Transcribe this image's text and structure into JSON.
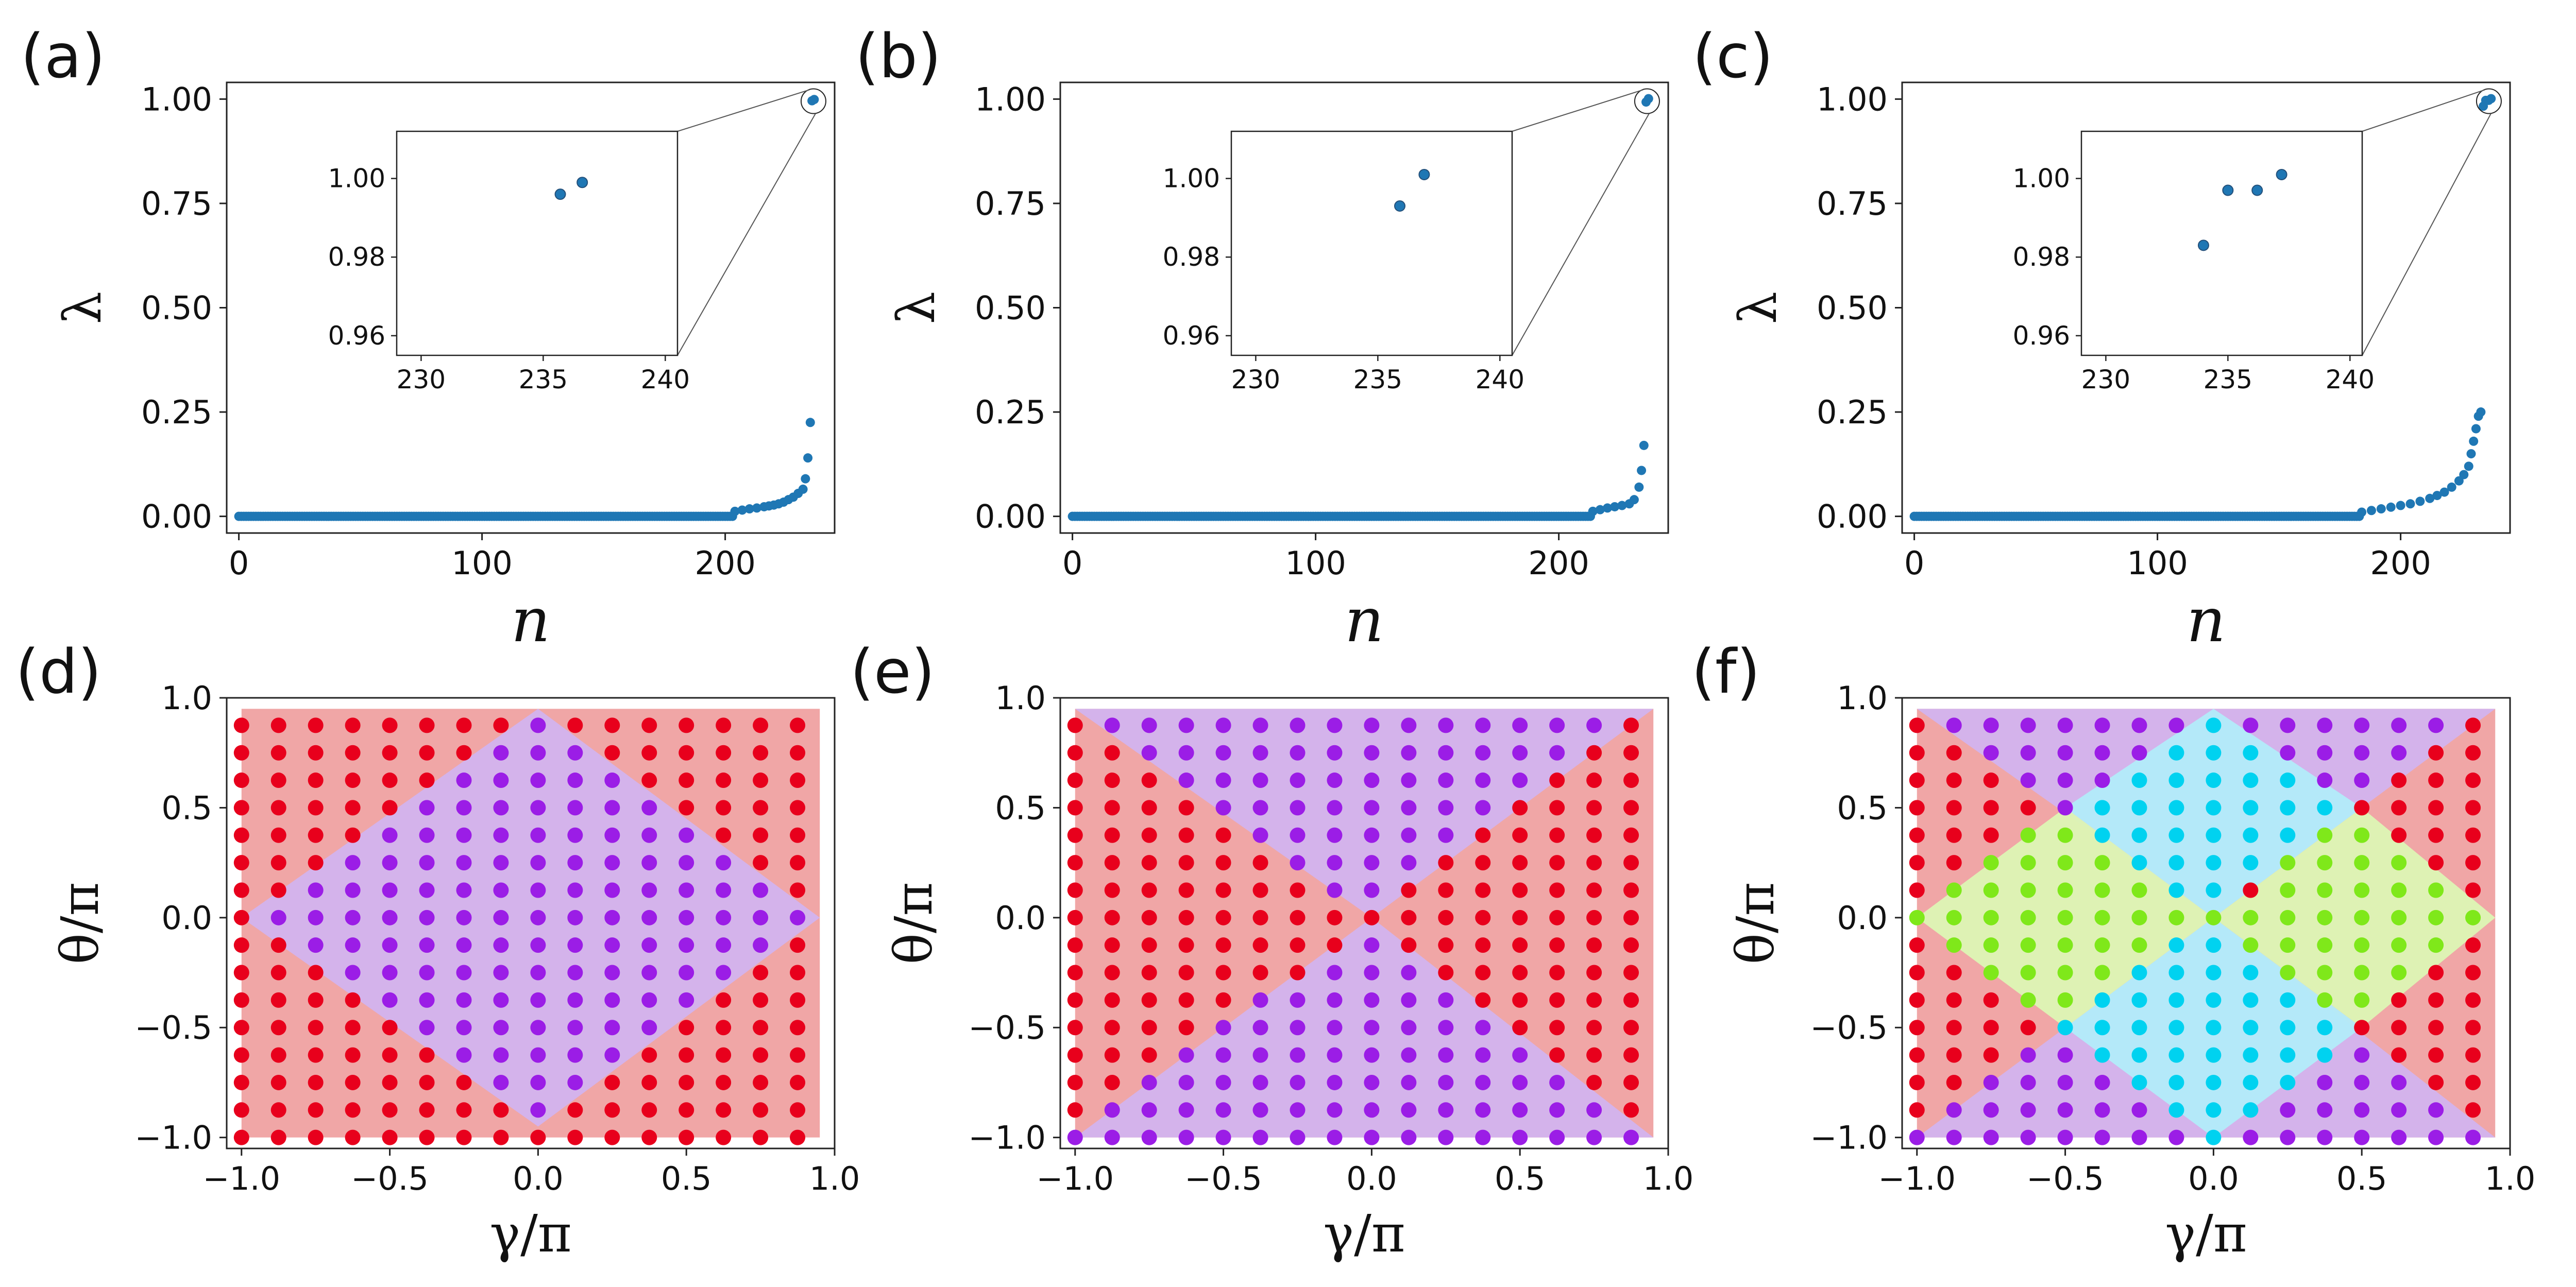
{
  "colors": {
    "point": "#1f77b4",
    "point_edge": "#24507a",
    "red_dot": "#e8001c",
    "purple_dot": "#9b1de6",
    "green_dot": "#7fe81a",
    "cyan_dot": "#00d2f0",
    "red_region": "#f0a6a6",
    "purple_region": "#d2b3ee",
    "green_region": "#dcf5b4",
    "cyan_region": "#b2ecfa"
  },
  "chart_data": [
    {
      "panel_label": "(a)",
      "type": "scatter",
      "xlabel": "n",
      "ylabel": "λ",
      "xlim": [
        -5,
        245
      ],
      "ylim": [
        -0.04,
        1.04
      ],
      "xticks": [
        0,
        100,
        200
      ],
      "xtick_labels": [
        "0",
        "100",
        "200"
      ],
      "yticks": [
        0,
        0.25,
        0.5,
        0.75,
        1.0
      ],
      "ytick_labels": [
        "0.00",
        "0.25",
        "0.50",
        "0.75",
        "1.00"
      ],
      "zero_until": 203,
      "tail_points": [
        [
          204,
          0.012
        ],
        [
          207,
          0.015
        ],
        [
          210,
          0.018
        ],
        [
          213,
          0.02
        ],
        [
          216,
          0.023
        ],
        [
          218,
          0.025
        ],
        [
          220,
          0.027
        ],
        [
          222,
          0.03
        ],
        [
          224,
          0.034
        ],
        [
          226,
          0.04
        ],
        [
          228,
          0.046
        ],
        [
          230,
          0.055
        ],
        [
          232,
          0.065
        ],
        [
          233,
          0.09
        ],
        [
          234,
          0.14
        ],
        [
          235,
          0.225
        ],
        [
          235.7,
          0.996
        ],
        [
          236.6,
          0.999
        ]
      ],
      "inset": {
        "xlim": [
          229,
          240.5
        ],
        "ylim": [
          0.955,
          1.012
        ],
        "xticks": [
          230,
          235,
          240
        ],
        "xtick_labels": [
          "230",
          "235",
          "240"
        ],
        "yticks": [
          0.96,
          0.98,
          1.0
        ],
        "ytick_labels": [
          "0.96",
          "0.98",
          "1.00"
        ],
        "points": [
          [
            235.7,
            0.996
          ],
          [
            236.6,
            0.999
          ]
        ]
      }
    },
    {
      "panel_label": "(b)",
      "type": "scatter",
      "xlabel": "n",
      "ylabel": "λ",
      "xlim": [
        -5,
        245
      ],
      "ylim": [
        -0.04,
        1.04
      ],
      "xticks": [
        0,
        100,
        200
      ],
      "xtick_labels": [
        "0",
        "100",
        "200"
      ],
      "yticks": [
        0,
        0.25,
        0.5,
        0.75,
        1.0
      ],
      "ytick_labels": [
        "0.00",
        "0.25",
        "0.50",
        "0.75",
        "1.00"
      ],
      "zero_until": 213,
      "tail_points": [
        [
          214,
          0.012
        ],
        [
          217,
          0.016
        ],
        [
          220,
          0.02
        ],
        [
          223,
          0.023
        ],
        [
          226,
          0.026
        ],
        [
          229,
          0.03
        ],
        [
          231,
          0.04
        ],
        [
          233,
          0.07
        ],
        [
          234,
          0.11
        ],
        [
          235,
          0.17
        ],
        [
          235.9,
          0.993
        ],
        [
          236.9,
          1.001
        ]
      ],
      "inset": {
        "xlim": [
          229,
          240.5
        ],
        "ylim": [
          0.955,
          1.012
        ],
        "xticks": [
          230,
          235,
          240
        ],
        "xtick_labels": [
          "230",
          "235",
          "240"
        ],
        "yticks": [
          0.96,
          0.98,
          1.0
        ],
        "ytick_labels": [
          "0.96",
          "0.98",
          "1.00"
        ],
        "points": [
          [
            235.9,
            0.993
          ],
          [
            236.9,
            1.001
          ]
        ]
      }
    },
    {
      "panel_label": "(c)",
      "type": "scatter",
      "xlabel": "n",
      "ylabel": "λ",
      "xlim": [
        -5,
        245
      ],
      "ylim": [
        -0.04,
        1.04
      ],
      "xticks": [
        0,
        100,
        200
      ],
      "xtick_labels": [
        "0",
        "100",
        "200"
      ],
      "yticks": [
        0,
        0.25,
        0.5,
        0.75,
        1.0
      ],
      "ytick_labels": [
        "0.00",
        "0.25",
        "0.50",
        "0.75",
        "1.00"
      ],
      "zero_until": 183,
      "tail_points": [
        [
          184,
          0.01
        ],
        [
          188,
          0.014
        ],
        [
          192,
          0.018
        ],
        [
          196,
          0.022
        ],
        [
          200,
          0.026
        ],
        [
          204,
          0.03
        ],
        [
          208,
          0.036
        ],
        [
          212,
          0.043
        ],
        [
          215,
          0.05
        ],
        [
          218,
          0.058
        ],
        [
          221,
          0.07
        ],
        [
          224,
          0.085
        ],
        [
          226,
          0.1
        ],
        [
          228,
          0.12
        ],
        [
          229,
          0.15
        ],
        [
          230,
          0.18
        ],
        [
          231,
          0.21
        ],
        [
          232,
          0.24
        ],
        [
          233,
          0.25
        ],
        [
          234,
          0.983
        ],
        [
          235,
          0.997
        ],
        [
          236.2,
          0.997
        ],
        [
          237.2,
          1.001
        ]
      ],
      "inset": {
        "xlim": [
          229,
          240.5
        ],
        "ylim": [
          0.955,
          1.012
        ],
        "xticks": [
          230,
          235,
          240
        ],
        "xtick_labels": [
          "230",
          "235",
          "240"
        ],
        "yticks": [
          0.96,
          0.98,
          1.0
        ],
        "ytick_labels": [
          "0.96",
          "0.98",
          "1.00"
        ],
        "points": [
          [
            234.0,
            0.983
          ],
          [
            235.0,
            0.997
          ],
          [
            236.2,
            0.997
          ],
          [
            237.2,
            1.001
          ]
        ]
      }
    },
    {
      "panel_label": "(d)",
      "type": "scatter",
      "xlabel": "γ/π",
      "ylabel": "θ/π",
      "xlim": [
        -1.05,
        1.0
      ],
      "ylim": [
        -1.05,
        1.0
      ],
      "ticks": [
        -1.0,
        -0.5,
        0.0,
        0.5,
        1.0
      ],
      "tick_labels": [
        "−1.0",
        "−0.5",
        "0.0",
        "0.5",
        "1.0"
      ],
      "grid_spacing": 0.125,
      "grid_range": [
        -1.0,
        0.875
      ],
      "regions": [
        {
          "color": "purple",
          "polygon": [
            [
              -1.0,
              0.0
            ],
            [
              0.0,
              0.95
            ],
            [
              0.95,
              0.0
            ],
            [
              0.0,
              -0.95
            ]
          ]
        }
      ],
      "rule": "diamond"
    },
    {
      "panel_label": "(e)",
      "type": "scatter",
      "xlabel": "γ/π",
      "ylabel": "θ/π",
      "xlim": [
        -1.05,
        1.0
      ],
      "ylim": [
        -1.05,
        1.0
      ],
      "ticks": [
        -1.0,
        -0.5,
        0.0,
        0.5,
        1.0
      ],
      "tick_labels": [
        "−1.0",
        "−0.5",
        "0.0",
        "0.5",
        "1.0"
      ],
      "grid_spacing": 0.125,
      "grid_range": [
        -1.0,
        0.875
      ],
      "regions": [
        {
          "color": "purple",
          "polygon": [
            [
              -1.0,
              0.95
            ],
            [
              0.95,
              0.95
            ],
            [
              0.0,
              0.0
            ]
          ]
        },
        {
          "color": "purple",
          "polygon": [
            [
              -1.0,
              -1.0
            ],
            [
              0.95,
              -1.0
            ],
            [
              0.0,
              0.0
            ]
          ]
        }
      ],
      "rule": "hourglass"
    },
    {
      "panel_label": "(f)",
      "type": "scatter",
      "xlabel": "γ/π",
      "ylabel": "θ/π",
      "xlim": [
        -1.05,
        1.0
      ],
      "ylim": [
        -1.05,
        1.0
      ],
      "ticks": [
        -1.0,
        -0.5,
        0.0,
        0.5,
        1.0
      ],
      "tick_labels": [
        "−1.0",
        "−0.5",
        "0.0",
        "0.5",
        "1.0"
      ],
      "grid_spacing": 0.125,
      "grid_range": [
        -1.0,
        0.875
      ],
      "regions": [
        {
          "color": "purple",
          "polygon": [
            [
              -1.0,
              0.95
            ],
            [
              0.95,
              0.95
            ],
            [
              0.0,
              0.0
            ]
          ]
        },
        {
          "color": "purple",
          "polygon": [
            [
              -1.0,
              -1.0
            ],
            [
              0.95,
              -1.0
            ],
            [
              0.0,
              0.0
            ]
          ]
        },
        {
          "color": "green",
          "polygon": [
            [
              -1.0,
              0.0
            ],
            [
              -0.5,
              0.5
            ],
            [
              0.0,
              0.0
            ],
            [
              -0.5,
              -0.5
            ]
          ]
        },
        {
          "color": "green",
          "polygon": [
            [
              0.0,
              0.0
            ],
            [
              0.5,
              0.5
            ],
            [
              0.95,
              0.0
            ],
            [
              0.5,
              -0.5
            ]
          ]
        },
        {
          "color": "cyan",
          "polygon": [
            [
              -0.5,
              0.5
            ],
            [
              0.0,
              0.95
            ],
            [
              0.5,
              0.5
            ],
            [
              0.0,
              0.0
            ]
          ]
        },
        {
          "color": "cyan",
          "polygon": [
            [
              -0.5,
              -0.5
            ],
            [
              0.0,
              0.0
            ],
            [
              0.5,
              -0.5
            ],
            [
              0.0,
              -1.0
            ]
          ]
        }
      ],
      "rule": "four-phase"
    }
  ]
}
